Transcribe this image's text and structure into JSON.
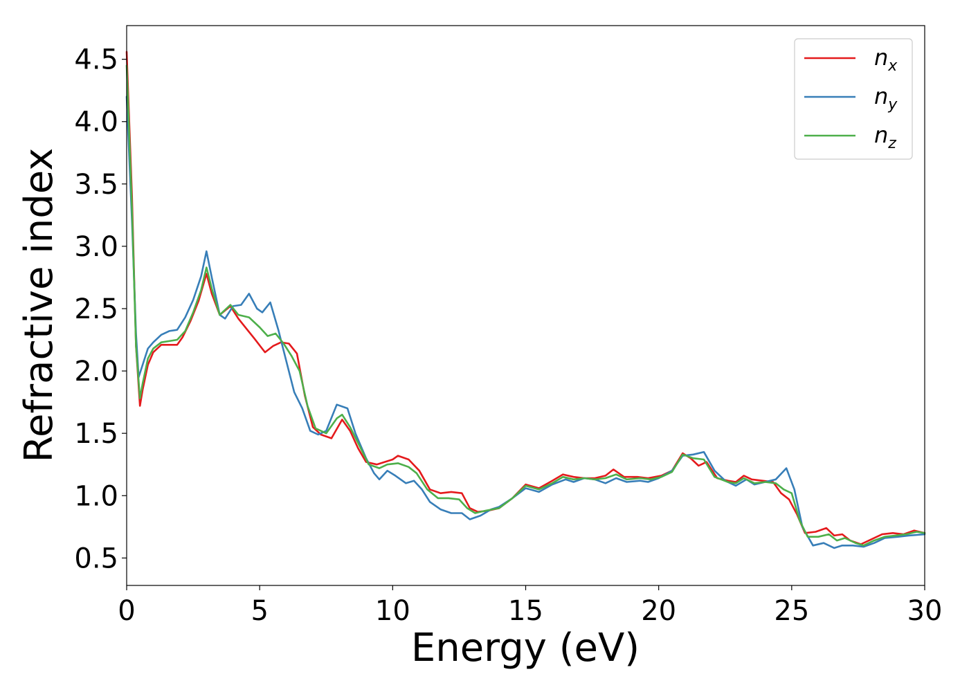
{
  "chart_data": {
    "type": "line",
    "title": "",
    "xlabel": "Energy (eV)",
    "ylabel": "Refractive index",
    "xlim": [
      0,
      30
    ],
    "ylim": [
      0.28,
      4.77
    ],
    "xticks": [
      0,
      5,
      10,
      15,
      20,
      25,
      30
    ],
    "yticks": [
      0.5,
      1.0,
      1.5,
      2.0,
      2.5,
      3.0,
      3.5,
      4.0,
      4.5
    ],
    "xtick_labels": [
      "0",
      "5",
      "10",
      "15",
      "20",
      "25",
      "30"
    ],
    "ytick_labels": [
      "0.5",
      "1.0",
      "1.5",
      "2.0",
      "2.5",
      "3.0",
      "3.5",
      "4.0",
      "4.5"
    ],
    "grid": false,
    "legend_position": "top-right",
    "series": [
      {
        "name": "n_x",
        "legend_base": "n",
        "legend_sub": "x",
        "color": "#e41a1c",
        "points": [
          [
            0,
            4.56
          ],
          [
            0.2,
            3.4
          ],
          [
            0.35,
            2.2
          ],
          [
            0.5,
            1.72
          ],
          [
            0.6,
            1.85
          ],
          [
            0.8,
            2.05
          ],
          [
            1.0,
            2.15
          ],
          [
            1.3,
            2.21
          ],
          [
            1.6,
            2.21
          ],
          [
            1.9,
            2.21
          ],
          [
            2.1,
            2.27
          ],
          [
            2.4,
            2.4
          ],
          [
            2.7,
            2.56
          ],
          [
            3.0,
            2.78
          ],
          [
            3.2,
            2.62
          ],
          [
            3.5,
            2.45
          ],
          [
            3.9,
            2.52
          ],
          [
            4.2,
            2.42
          ],
          [
            4.5,
            2.34
          ],
          [
            4.8,
            2.26
          ],
          [
            5.2,
            2.15
          ],
          [
            5.5,
            2.2
          ],
          [
            5.8,
            2.23
          ],
          [
            6.1,
            2.22
          ],
          [
            6.4,
            2.14
          ],
          [
            6.7,
            1.8
          ],
          [
            7.0,
            1.55
          ],
          [
            7.3,
            1.49
          ],
          [
            7.7,
            1.46
          ],
          [
            8.1,
            1.61
          ],
          [
            8.4,
            1.52
          ],
          [
            8.7,
            1.38
          ],
          [
            9.0,
            1.27
          ],
          [
            9.4,
            1.25
          ],
          [
            9.7,
            1.27
          ],
          [
            10.0,
            1.29
          ],
          [
            10.2,
            1.32
          ],
          [
            10.6,
            1.29
          ],
          [
            11.0,
            1.2
          ],
          [
            11.4,
            1.05
          ],
          [
            11.8,
            1.02
          ],
          [
            12.2,
            1.03
          ],
          [
            12.6,
            1.02
          ],
          [
            12.9,
            0.9
          ],
          [
            13.2,
            0.87
          ],
          [
            13.6,
            0.88
          ],
          [
            14.0,
            0.9
          ],
          [
            14.5,
            0.98
          ],
          [
            15.0,
            1.09
          ],
          [
            15.5,
            1.06
          ],
          [
            16.0,
            1.12
          ],
          [
            16.4,
            1.17
          ],
          [
            16.8,
            1.15
          ],
          [
            17.2,
            1.14
          ],
          [
            17.6,
            1.14
          ],
          [
            18.0,
            1.16
          ],
          [
            18.3,
            1.21
          ],
          [
            18.7,
            1.15
          ],
          [
            19.2,
            1.15
          ],
          [
            19.6,
            1.14
          ],
          [
            20.1,
            1.16
          ],
          [
            20.5,
            1.2
          ],
          [
            20.9,
            1.34
          ],
          [
            21.2,
            1.3
          ],
          [
            21.5,
            1.24
          ],
          [
            21.8,
            1.27
          ],
          [
            22.2,
            1.14
          ],
          [
            22.6,
            1.12
          ],
          [
            22.9,
            1.11
          ],
          [
            23.2,
            1.16
          ],
          [
            23.5,
            1.13
          ],
          [
            23.9,
            1.12
          ],
          [
            24.3,
            1.11
          ],
          [
            24.6,
            1.02
          ],
          [
            24.9,
            0.97
          ],
          [
            25.2,
            0.85
          ],
          [
            25.5,
            0.7
          ],
          [
            25.9,
            0.71
          ],
          [
            26.3,
            0.74
          ],
          [
            26.6,
            0.68
          ],
          [
            26.9,
            0.69
          ],
          [
            27.2,
            0.64
          ],
          [
            27.6,
            0.61
          ],
          [
            28.0,
            0.65
          ],
          [
            28.4,
            0.69
          ],
          [
            28.8,
            0.7
          ],
          [
            29.2,
            0.69
          ],
          [
            29.6,
            0.72
          ],
          [
            30.0,
            0.7
          ]
        ]
      },
      {
        "name": "n_y",
        "legend_base": "n",
        "legend_sub": "y",
        "color": "#377eb8",
        "points": [
          [
            0,
            4.2
          ],
          [
            0.2,
            3.2
          ],
          [
            0.35,
            2.3
          ],
          [
            0.45,
            1.95
          ],
          [
            0.6,
            2.05
          ],
          [
            0.8,
            2.18
          ],
          [
            1.0,
            2.23
          ],
          [
            1.3,
            2.29
          ],
          [
            1.6,
            2.32
          ],
          [
            1.9,
            2.33
          ],
          [
            2.2,
            2.43
          ],
          [
            2.5,
            2.57
          ],
          [
            2.8,
            2.76
          ],
          [
            3.0,
            2.96
          ],
          [
            3.2,
            2.75
          ],
          [
            3.5,
            2.45
          ],
          [
            3.7,
            2.42
          ],
          [
            4.0,
            2.52
          ],
          [
            4.3,
            2.53
          ],
          [
            4.6,
            2.62
          ],
          [
            4.9,
            2.5
          ],
          [
            5.1,
            2.47
          ],
          [
            5.4,
            2.55
          ],
          [
            5.7,
            2.33
          ],
          [
            6.0,
            2.08
          ],
          [
            6.3,
            1.83
          ],
          [
            6.6,
            1.7
          ],
          [
            6.9,
            1.52
          ],
          [
            7.2,
            1.49
          ],
          [
            7.5,
            1.52
          ],
          [
            7.9,
            1.73
          ],
          [
            8.3,
            1.7
          ],
          [
            8.6,
            1.5
          ],
          [
            9.0,
            1.3
          ],
          [
            9.3,
            1.18
          ],
          [
            9.5,
            1.13
          ],
          [
            9.8,
            1.2
          ],
          [
            10.1,
            1.16
          ],
          [
            10.5,
            1.1
          ],
          [
            10.8,
            1.12
          ],
          [
            11.1,
            1.05
          ],
          [
            11.4,
            0.95
          ],
          [
            11.8,
            0.89
          ],
          [
            12.2,
            0.86
          ],
          [
            12.6,
            0.86
          ],
          [
            12.9,
            0.81
          ],
          [
            13.3,
            0.84
          ],
          [
            13.7,
            0.89
          ],
          [
            14.0,
            0.91
          ],
          [
            14.5,
            0.98
          ],
          [
            15.0,
            1.06
          ],
          [
            15.5,
            1.03
          ],
          [
            16.0,
            1.09
          ],
          [
            16.5,
            1.13
          ],
          [
            16.8,
            1.11
          ],
          [
            17.2,
            1.14
          ],
          [
            17.6,
            1.13
          ],
          [
            18.0,
            1.1
          ],
          [
            18.4,
            1.14
          ],
          [
            18.8,
            1.11
          ],
          [
            19.3,
            1.12
          ],
          [
            19.6,
            1.11
          ],
          [
            20.0,
            1.14
          ],
          [
            20.5,
            1.2
          ],
          [
            20.9,
            1.32
          ],
          [
            21.3,
            1.33
          ],
          [
            21.7,
            1.35
          ],
          [
            22.1,
            1.2
          ],
          [
            22.5,
            1.12
          ],
          [
            22.9,
            1.08
          ],
          [
            23.3,
            1.13
          ],
          [
            23.6,
            1.09
          ],
          [
            24.0,
            1.11
          ],
          [
            24.4,
            1.13
          ],
          [
            24.8,
            1.22
          ],
          [
            25.1,
            1.05
          ],
          [
            25.4,
            0.75
          ],
          [
            25.8,
            0.6
          ],
          [
            26.2,
            0.62
          ],
          [
            26.6,
            0.58
          ],
          [
            26.9,
            0.6
          ],
          [
            27.3,
            0.6
          ],
          [
            27.7,
            0.59
          ],
          [
            28.1,
            0.62
          ],
          [
            28.5,
            0.66
          ],
          [
            29.0,
            0.67
          ],
          [
            29.4,
            0.68
          ],
          [
            30.0,
            0.69
          ]
        ]
      },
      {
        "name": "n_z",
        "legend_base": "n",
        "legend_sub": "z",
        "color": "#4daf4a",
        "points": [
          [
            0,
            4.45
          ],
          [
            0.2,
            3.3
          ],
          [
            0.35,
            2.2
          ],
          [
            0.5,
            1.78
          ],
          [
            0.6,
            1.9
          ],
          [
            0.8,
            2.1
          ],
          [
            1.0,
            2.18
          ],
          [
            1.3,
            2.23
          ],
          [
            1.6,
            2.24
          ],
          [
            1.9,
            2.25
          ],
          [
            2.2,
            2.32
          ],
          [
            2.5,
            2.47
          ],
          [
            2.8,
            2.65
          ],
          [
            3.0,
            2.83
          ],
          [
            3.2,
            2.66
          ],
          [
            3.5,
            2.45
          ],
          [
            3.9,
            2.53
          ],
          [
            4.2,
            2.45
          ],
          [
            4.6,
            2.43
          ],
          [
            5.0,
            2.35
          ],
          [
            5.3,
            2.28
          ],
          [
            5.6,
            2.3
          ],
          [
            5.9,
            2.22
          ],
          [
            6.2,
            2.12
          ],
          [
            6.5,
            2.0
          ],
          [
            6.8,
            1.72
          ],
          [
            7.1,
            1.54
          ],
          [
            7.5,
            1.5
          ],
          [
            7.9,
            1.62
          ],
          [
            8.1,
            1.65
          ],
          [
            8.4,
            1.55
          ],
          [
            8.8,
            1.38
          ],
          [
            9.1,
            1.25
          ],
          [
            9.5,
            1.22
          ],
          [
            9.8,
            1.25
          ],
          [
            10.2,
            1.26
          ],
          [
            10.6,
            1.23
          ],
          [
            10.9,
            1.18
          ],
          [
            11.3,
            1.05
          ],
          [
            11.7,
            0.98
          ],
          [
            12.1,
            0.98
          ],
          [
            12.5,
            0.97
          ],
          [
            12.8,
            0.9
          ],
          [
            13.1,
            0.86
          ],
          [
            13.5,
            0.88
          ],
          [
            14.0,
            0.9
          ],
          [
            14.5,
            0.98
          ],
          [
            15.0,
            1.08
          ],
          [
            15.5,
            1.05
          ],
          [
            16.0,
            1.1
          ],
          [
            16.4,
            1.15
          ],
          [
            16.8,
            1.13
          ],
          [
            17.2,
            1.14
          ],
          [
            17.6,
            1.13
          ],
          [
            18.0,
            1.14
          ],
          [
            18.4,
            1.17
          ],
          [
            18.8,
            1.13
          ],
          [
            19.3,
            1.14
          ],
          [
            19.7,
            1.13
          ],
          [
            20.1,
            1.15
          ],
          [
            20.5,
            1.19
          ],
          [
            20.9,
            1.33
          ],
          [
            21.3,
            1.3
          ],
          [
            21.7,
            1.29
          ],
          [
            22.1,
            1.15
          ],
          [
            22.6,
            1.11
          ],
          [
            22.9,
            1.1
          ],
          [
            23.2,
            1.14
          ],
          [
            23.6,
            1.1
          ],
          [
            24.0,
            1.11
          ],
          [
            24.4,
            1.1
          ],
          [
            24.7,
            1.05
          ],
          [
            25.0,
            1.02
          ],
          [
            25.3,
            0.8
          ],
          [
            25.6,
            0.67
          ],
          [
            26.0,
            0.67
          ],
          [
            26.4,
            0.69
          ],
          [
            26.7,
            0.64
          ],
          [
            27.0,
            0.66
          ],
          [
            27.4,
            0.62
          ],
          [
            27.7,
            0.6
          ],
          [
            28.1,
            0.64
          ],
          [
            28.5,
            0.67
          ],
          [
            28.9,
            0.68
          ],
          [
            29.3,
            0.69
          ],
          [
            29.7,
            0.71
          ],
          [
            30.0,
            0.7
          ]
        ]
      }
    ]
  }
}
